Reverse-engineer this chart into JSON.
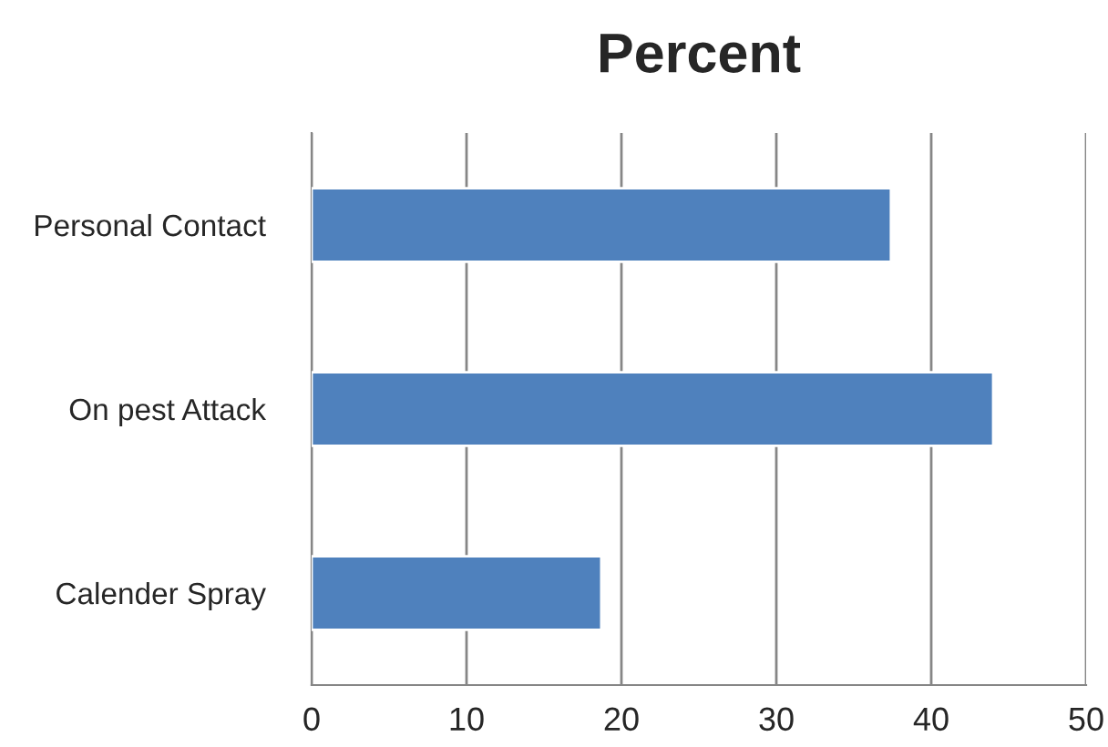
{
  "chart_data": {
    "type": "bar",
    "orientation": "horizontal",
    "title": "Percent",
    "categories": [
      "Personal Contact",
      "On pest Attack",
      "Calender Spray"
    ],
    "values": [
      37.4,
      44.0,
      18.7
    ],
    "color": "#4f81bd",
    "xlim": [
      0,
      50
    ],
    "xticks": [
      0,
      10,
      20,
      30,
      40,
      50
    ],
    "grid": "x"
  }
}
